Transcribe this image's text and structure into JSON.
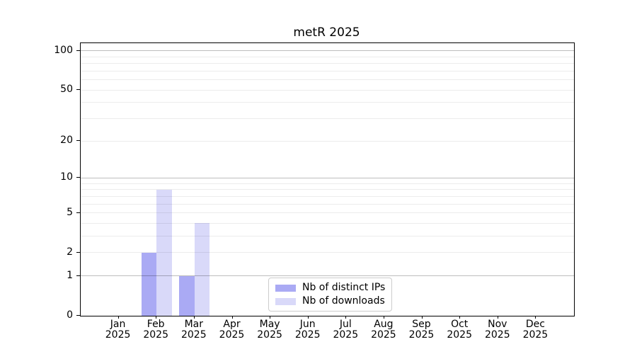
{
  "chart_data": {
    "type": "bar",
    "title": "metR 2025",
    "categories": [
      "Jan",
      "Feb",
      "Mar",
      "Apr",
      "May",
      "Jun",
      "Jul",
      "Aug",
      "Sep",
      "Oct",
      "Nov",
      "Dec"
    ],
    "year": "2025",
    "series": [
      {
        "name": "Nb of distinct IPs",
        "color": "#aaaaf4",
        "values": [
          0,
          2,
          1,
          0,
          0,
          0,
          0,
          0,
          0,
          0,
          0,
          0
        ]
      },
      {
        "name": "Nb of downloads",
        "color": "#d9d9f9",
        "values": [
          0,
          8,
          4,
          0,
          0,
          0,
          0,
          0,
          0,
          0,
          0,
          0
        ]
      }
    ],
    "xlabel": "",
    "ylabel": "",
    "scale": "log1p",
    "ylim": [
      0,
      114
    ],
    "yticks": [
      0,
      1,
      2,
      5,
      10,
      20,
      50,
      100
    ],
    "grid_major": [
      1,
      10,
      100
    ],
    "grid_minor": [
      2,
      3,
      4,
      5,
      6,
      7,
      8,
      9,
      20,
      30,
      40,
      50,
      60,
      70,
      80,
      90
    ],
    "legend_position": "inside-bottom-center",
    "grid": "on"
  }
}
